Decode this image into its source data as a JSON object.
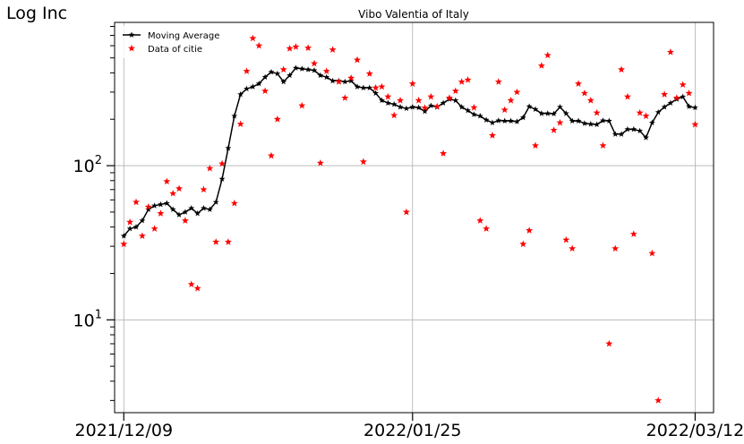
{
  "corner_label": "Log Inc",
  "chart_data": {
    "type": "line",
    "title": "Vibo Valentia of Italy",
    "xlabel": "",
    "ylabel": "",
    "yscale": "log",
    "ylim": [
      2.5,
      850
    ],
    "xlim": [
      -1.5,
      96
    ],
    "grid": true,
    "legend_position": "top-left",
    "x_ticks": [
      {
        "day": 0,
        "label": "2021/12/09"
      },
      {
        "day": 47,
        "label": "2022/01/25"
      },
      {
        "day": 93,
        "label": "2022/03/12"
      }
    ],
    "y_ticks": [
      {
        "value": 10,
        "label": "10",
        "sup": "1"
      },
      {
        "value": 100,
        "label": "10",
        "sup": "2"
      }
    ],
    "series": [
      {
        "name": "Moving Average",
        "style": "line-star",
        "color": "#000000",
        "values": [
          35,
          39,
          40,
          44,
          52,
          55,
          56,
          57,
          52,
          48,
          50,
          53,
          49,
          53,
          52,
          58,
          82,
          130,
          210,
          290,
          315,
          325,
          340,
          375,
          405,
          395,
          350,
          385,
          430,
          425,
          420,
          415,
          385,
          375,
          355,
          355,
          350,
          355,
          325,
          320,
          320,
          295,
          265,
          255,
          250,
          240,
          235,
          240,
          238,
          225,
          245,
          240,
          255,
          270,
          265,
          240,
          228,
          215,
          210,
          198,
          190,
          196,
          195,
          195,
          193,
          205,
          242,
          232,
          218,
          218,
          217,
          240,
          218,
          195,
          195,
          188,
          186,
          185,
          196,
          195,
          160,
          160,
          172,
          172,
          168,
          152,
          190,
          222,
          240,
          255,
          270,
          280,
          242,
          238
        ]
      },
      {
        "name": "Data of citie",
        "style": "star",
        "color": "#ff0000",
        "points": [
          [
            0,
            31
          ],
          [
            1,
            43
          ],
          [
            2,
            58
          ],
          [
            3,
            35
          ],
          [
            4,
            54
          ],
          [
            5,
            39
          ],
          [
            6,
            49
          ],
          [
            7,
            79
          ],
          [
            8,
            66
          ],
          [
            9,
            71
          ],
          [
            10,
            44
          ],
          [
            11,
            17
          ],
          [
            12,
            16
          ],
          [
            13,
            70
          ],
          [
            14,
            96
          ],
          [
            15,
            32
          ],
          [
            16,
            103
          ],
          [
            17,
            32
          ],
          [
            18,
            57
          ],
          [
            19,
            186
          ],
          [
            20,
            410
          ],
          [
            21,
            670
          ],
          [
            22,
            600
          ],
          [
            23,
            305
          ],
          [
            24,
            116
          ],
          [
            25,
            200
          ],
          [
            26,
            420
          ],
          [
            27,
            575
          ],
          [
            28,
            590
          ],
          [
            29,
            245
          ],
          [
            30,
            580
          ],
          [
            31,
            460
          ],
          [
            32,
            104
          ],
          [
            33,
            410
          ],
          [
            34,
            565
          ],
          [
            35,
            350
          ],
          [
            36,
            275
          ],
          [
            37,
            370
          ],
          [
            38,
            485
          ],
          [
            39,
            106
          ],
          [
            40,
            395
          ],
          [
            41,
            320
          ],
          [
            42,
            325
          ],
          [
            43,
            280
          ],
          [
            44,
            212
          ],
          [
            45,
            265
          ],
          [
            46,
            50
          ],
          [
            47,
            340
          ],
          [
            48,
            265
          ],
          [
            49,
            237
          ],
          [
            50,
            280
          ],
          [
            51,
            242
          ],
          [
            52,
            120
          ],
          [
            53,
            275
          ],
          [
            54,
            305
          ],
          [
            55,
            350
          ],
          [
            56,
            360
          ],
          [
            57,
            238
          ],
          [
            58,
            44
          ],
          [
            59,
            39
          ],
          [
            60,
            157
          ],
          [
            61,
            350
          ],
          [
            62,
            230
          ],
          [
            63,
            265
          ],
          [
            64,
            300
          ],
          [
            65,
            31
          ],
          [
            66,
            38
          ],
          [
            67,
            135
          ],
          [
            68,
            445
          ],
          [
            69,
            520
          ],
          [
            70,
            170
          ],
          [
            71,
            190
          ],
          [
            72,
            33
          ],
          [
            73,
            29
          ],
          [
            74,
            340
          ],
          [
            75,
            295
          ],
          [
            76,
            265
          ],
          [
            77,
            220
          ],
          [
            78,
            135
          ],
          [
            79,
            7
          ],
          [
            80,
            29
          ],
          [
            81,
            420
          ],
          [
            82,
            280
          ],
          [
            83,
            36
          ],
          [
            84,
            220
          ],
          [
            85,
            210
          ],
          [
            86,
            27
          ],
          [
            87,
            3
          ],
          [
            88,
            290
          ],
          [
            89,
            545
          ],
          [
            90,
            275
          ],
          [
            91,
            335
          ],
          [
            92,
            295
          ],
          [
            93,
            185
          ]
        ]
      }
    ]
  }
}
